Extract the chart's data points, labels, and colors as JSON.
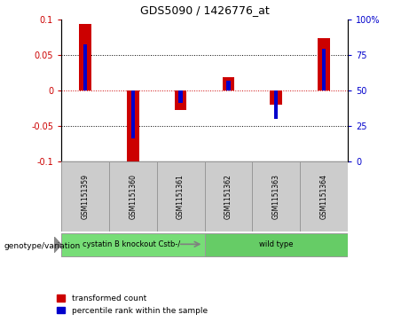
{
  "title": "GDS5090 / 1426776_at",
  "samples": [
    "GSM1151359",
    "GSM1151360",
    "GSM1151361",
    "GSM1151362",
    "GSM1151363",
    "GSM1151364"
  ],
  "red_values": [
    0.093,
    -0.103,
    -0.028,
    0.018,
    -0.02,
    0.073
  ],
  "blue_values": [
    0.065,
    -0.068,
    -0.018,
    0.013,
    -0.04,
    0.058
  ],
  "ylim": [
    -0.1,
    0.1
  ],
  "yticks": [
    -0.1,
    -0.05,
    0.0,
    0.05,
    0.1
  ],
  "ytick_labels_left": [
    "-0.1",
    "-0.05",
    "0",
    "0.05",
    "0.1"
  ],
  "ytick_labels_right": [
    "0",
    "25",
    "50",
    "75",
    "100%"
  ],
  "red_color": "#cc0000",
  "blue_color": "#0000cc",
  "red_bar_width": 0.25,
  "blue_bar_width": 0.08,
  "groups": [
    {
      "label": "cystatin B knockout Cstb-/-",
      "samples": [
        0,
        1,
        2
      ],
      "color": "#77dd77"
    },
    {
      "label": "wild type",
      "samples": [
        3,
        4,
        5
      ],
      "color": "#66cc66"
    }
  ],
  "group_label": "genotype/variation",
  "legend_red": "transformed count",
  "legend_blue": "percentile rank within the sample",
  "background_color": "#ffffff",
  "plot_bg": "#ffffff",
  "sample_box_color": "#cccccc"
}
